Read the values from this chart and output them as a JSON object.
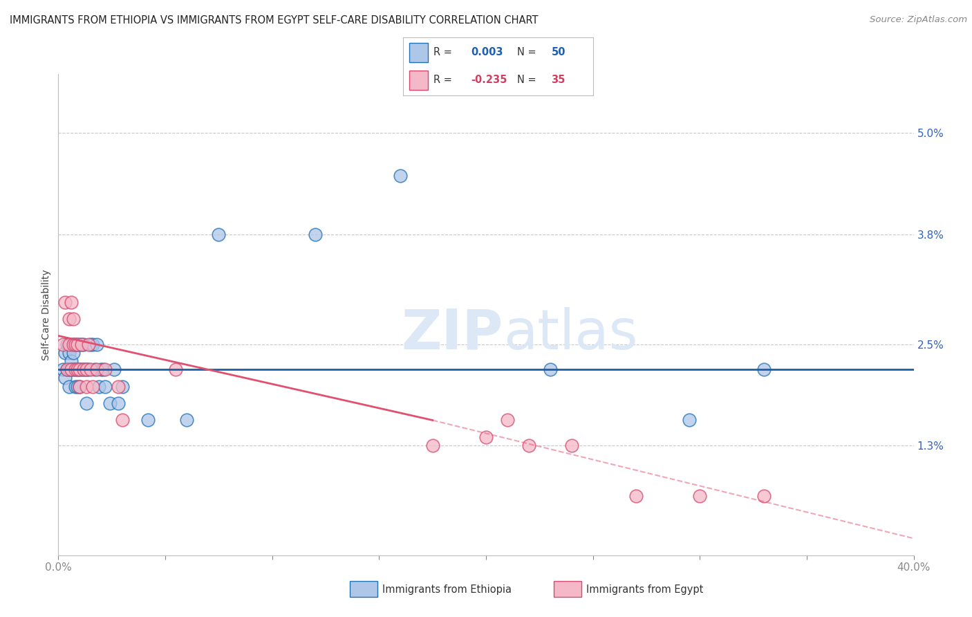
{
  "title": "IMMIGRANTS FROM ETHIOPIA VS IMMIGRANTS FROM EGYPT SELF-CARE DISABILITY CORRELATION CHART",
  "source": "Source: ZipAtlas.com",
  "ylabel": "Self-Care Disability",
  "xlim": [
    0.0,
    0.4
  ],
  "ylim": [
    0.0,
    0.057
  ],
  "blue_R": "0.003",
  "blue_N": "50",
  "pink_R": "-0.235",
  "pink_N": "35",
  "blue_fill": "#aec6e8",
  "blue_edge": "#2171b5",
  "pink_fill": "#f4b8c8",
  "pink_edge": "#d6496d",
  "blue_line": "#1a5fa8",
  "pink_line": "#e05070",
  "watermark_color": "#dce8f5",
  "grid_color": "#c8c8c8",
  "background_color": "#ffffff",
  "ytick_vals": [
    0.013,
    0.025,
    0.038,
    0.05
  ],
  "ytick_labels": [
    "1.3%",
    "2.5%",
    "3.8%",
    "5.0%"
  ],
  "ethiopia_x": [
    0.002,
    0.003,
    0.003,
    0.004,
    0.004,
    0.005,
    0.005,
    0.005,
    0.006,
    0.006,
    0.006,
    0.007,
    0.007,
    0.007,
    0.008,
    0.008,
    0.008,
    0.009,
    0.009,
    0.009,
    0.01,
    0.01,
    0.01,
    0.011,
    0.011,
    0.012,
    0.012,
    0.013,
    0.013,
    0.014,
    0.015,
    0.016,
    0.017,
    0.018,
    0.019,
    0.02,
    0.021,
    0.022,
    0.024,
    0.026,
    0.028,
    0.03,
    0.042,
    0.06,
    0.075,
    0.12,
    0.16,
    0.23,
    0.295,
    0.33
  ],
  "ethiopia_y": [
    0.022,
    0.021,
    0.024,
    0.022,
    0.025,
    0.022,
    0.024,
    0.02,
    0.023,
    0.025,
    0.022,
    0.025,
    0.022,
    0.024,
    0.022,
    0.02,
    0.025,
    0.025,
    0.022,
    0.02,
    0.022,
    0.02,
    0.025,
    0.025,
    0.022,
    0.025,
    0.022,
    0.022,
    0.018,
    0.022,
    0.025,
    0.025,
    0.022,
    0.025,
    0.02,
    0.022,
    0.022,
    0.02,
    0.018,
    0.022,
    0.018,
    0.02,
    0.016,
    0.016,
    0.038,
    0.038,
    0.045,
    0.022,
    0.016,
    0.022
  ],
  "egypt_x": [
    0.002,
    0.003,
    0.004,
    0.005,
    0.005,
    0.006,
    0.006,
    0.007,
    0.007,
    0.008,
    0.008,
    0.009,
    0.009,
    0.01,
    0.01,
    0.011,
    0.012,
    0.013,
    0.013,
    0.014,
    0.015,
    0.016,
    0.018,
    0.022,
    0.028,
    0.03,
    0.055,
    0.175,
    0.2,
    0.21,
    0.22,
    0.24,
    0.27,
    0.3,
    0.33
  ],
  "egypt_y": [
    0.025,
    0.03,
    0.022,
    0.028,
    0.025,
    0.03,
    0.022,
    0.025,
    0.028,
    0.025,
    0.022,
    0.022,
    0.025,
    0.02,
    0.022,
    0.025,
    0.022,
    0.022,
    0.02,
    0.025,
    0.022,
    0.02,
    0.022,
    0.022,
    0.02,
    0.016,
    0.022,
    0.013,
    0.014,
    0.016,
    0.013,
    0.013,
    0.007,
    0.007,
    0.007
  ],
  "eth_line_y_start": 0.022,
  "eth_line_y_end": 0.022,
  "egy_line_x_start": 0.0,
  "egy_line_x_solid_end": 0.175,
  "egy_line_x_dash_end": 0.4,
  "egy_line_y_start": 0.026,
  "egy_line_y_solid_end": 0.016,
  "egy_line_y_dash_end": 0.002
}
